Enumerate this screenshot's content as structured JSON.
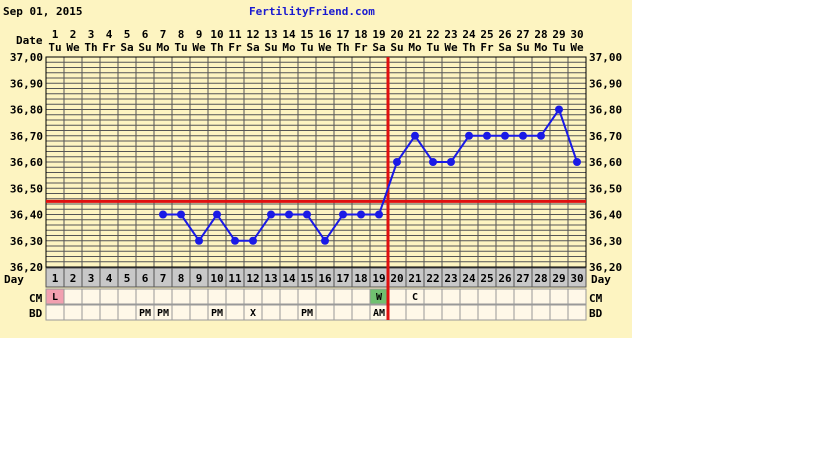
{
  "header": {
    "date_text": "Sep 01, 2015",
    "site_name": "FertilityFriend.com"
  },
  "row_labels": {
    "date": "Date",
    "day": "Day",
    "cm": "CM",
    "bd": "BD"
  },
  "colors": {
    "background": "#fdf4c1",
    "grid": "#555555",
    "line": "#1a1ae6",
    "coverline": "#e01010",
    "day_row": "#c8c8c8",
    "cell_bg": "#fff8e8",
    "menstruation": "#f2a0b0",
    "fertile_cm": "#70c070"
  },
  "chart_data": {
    "type": "line",
    "title": "",
    "xlabel": "Day",
    "ylabel": "",
    "ylim": [
      36.2,
      37.0
    ],
    "y_ticks": [
      "36,20",
      "36,30",
      "36,40",
      "36,50",
      "36,60",
      "36,70",
      "36,80",
      "36,90",
      "37,00"
    ],
    "dates": [
      "1",
      "2",
      "3",
      "4",
      "5",
      "6",
      "7",
      "8",
      "9",
      "10",
      "11",
      "12",
      "13",
      "14",
      "15",
      "16",
      "17",
      "18",
      "19",
      "20",
      "21",
      "22",
      "23",
      "24",
      "25",
      "26",
      "27",
      "28",
      "29",
      "30"
    ],
    "weekdays": [
      "Tu",
      "We",
      "Th",
      "Fr",
      "Sa",
      "Su",
      "Mo",
      "Tu",
      "We",
      "Th",
      "Fr",
      "Sa",
      "Su",
      "Mo",
      "Tu",
      "We",
      "Th",
      "Fr",
      "Sa",
      "Su",
      "Mo",
      "Tu",
      "We",
      "Th",
      "Fr",
      "Sa",
      "Su",
      "Mo",
      "Tu",
      "We"
    ],
    "days": [
      1,
      2,
      3,
      4,
      5,
      6,
      7,
      8,
      9,
      10,
      11,
      12,
      13,
      14,
      15,
      16,
      17,
      18,
      19,
      20,
      21,
      22,
      23,
      24,
      25,
      26,
      27,
      28,
      29,
      30
    ],
    "temperatures": [
      null,
      null,
      null,
      null,
      null,
      null,
      36.4,
      36.4,
      36.3,
      36.4,
      36.3,
      36.3,
      36.4,
      36.4,
      36.4,
      36.3,
      36.4,
      36.4,
      36.4,
      36.6,
      36.7,
      36.6,
      36.6,
      36.7,
      36.7,
      36.7,
      36.7,
      36.7,
      36.8,
      36.6
    ],
    "coverline": 36.45,
    "ovulation_day": 19,
    "grid": true,
    "legend": "none"
  },
  "rows": {
    "cm": [
      "L",
      "",
      "",
      "",
      "",
      "",
      "",
      "",
      "",
      "",
      "",
      "",
      "",
      "",
      "",
      "",
      "",
      "",
      "W",
      "",
      "C",
      "",
      "",
      "",
      "",
      "",
      "",
      "",
      "",
      ""
    ],
    "bd": [
      "",
      "",
      "",
      "",
      "",
      "PM",
      "PM",
      "",
      "",
      "PM",
      "",
      "X",
      "",
      "",
      "PM",
      "",
      "",
      "",
      "AM",
      "",
      "",
      "",
      "",
      "",
      "",
      "",
      "",
      "",
      "",
      ""
    ]
  }
}
